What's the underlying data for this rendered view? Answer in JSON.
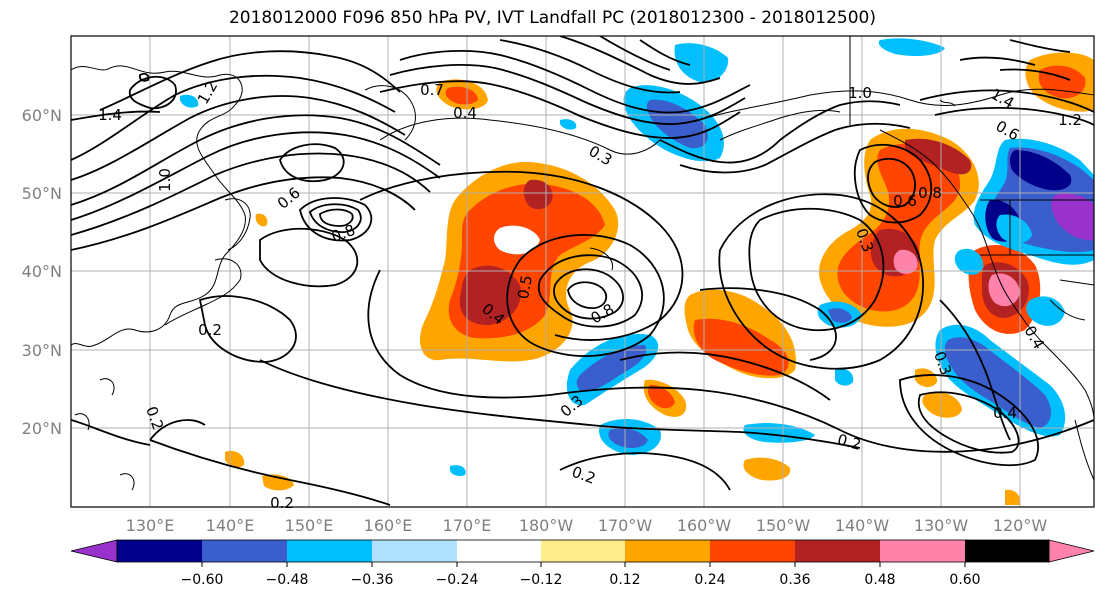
{
  "title": "2018012000 F096 850 hPa PV, IVT Landfall PC (2018012300 - 2018012500)",
  "map": {
    "lat_labels": [
      "60°N",
      "50°N",
      "40°N",
      "30°N",
      "20°N"
    ],
    "lon_labels": [
      "130°E",
      "140°E",
      "150°E",
      "160°E",
      "170°E",
      "180°W",
      "170°W",
      "160°W",
      "150°W",
      "140°W",
      "130°W",
      "120°W"
    ],
    "contour_labels": [
      "1.4",
      "1.2",
      "1.0",
      "0.7",
      "0.4",
      "0.8",
      "0.6",
      "0.3",
      "0.5",
      "0.4",
      "0.8",
      "0.2",
      "0.2",
      "0.3",
      "0.2",
      "0.2",
      "0.4",
      "0.2",
      "0.6",
      "1.4",
      "1.2",
      "1.0",
      "0.8",
      "0.3",
      "0.6",
      "0.4",
      "0.3"
    ]
  },
  "colorbar": {
    "tick_labels": [
      "−0.60",
      "−0.48",
      "−0.36",
      "−0.24",
      "−0.12",
      "0.12",
      "0.24",
      "0.36",
      "0.48",
      "0.60"
    ],
    "colors": [
      "#9932cc",
      "#00008b",
      "#3a5fcd",
      "#00bfff",
      "#b0e2ff",
      "#ffffff",
      "#ffec8b",
      "#ffa500",
      "#ff4500",
      "#b22222",
      "#ff82ab"
    ]
  }
}
